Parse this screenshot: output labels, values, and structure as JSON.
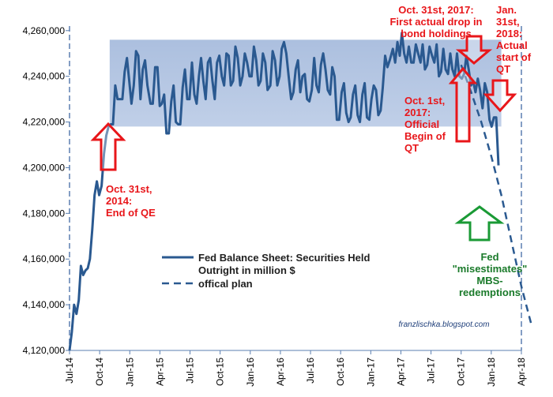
{
  "chart_data": {
    "type": "line",
    "title": "",
    "xlabel": "",
    "ylabel": "",
    "ylim": [
      4120000,
      4262000
    ],
    "y_ticks": [
      4120000,
      4140000,
      4160000,
      4180000,
      4200000,
      4220000,
      4240000,
      4260000
    ],
    "y_tick_labels": [
      "4,120,000",
      "4,140,000",
      "4,160,000",
      "4,180,000",
      "4,200,000",
      "4,220,000",
      "4,240,000",
      "4,260,000"
    ],
    "x_tick_labels": [
      "Jul-14",
      "Oct-14",
      "Jan-15",
      "Apr-15",
      "Jul-15",
      "Oct-15",
      "Jan-16",
      "Apr-16",
      "Jul-16",
      "Oct-16",
      "Jan-17",
      "Apr-17",
      "Jul-17",
      "Oct-17",
      "Jan-18",
      "Apr-18"
    ],
    "x_range": [
      "2014-07",
      "2018-04"
    ],
    "grid": false,
    "legend_position": "center-left",
    "highlight_band": {
      "x_from": "2014-11",
      "x_to": "2018-02",
      "y_from": 4218000,
      "y_to": 4256000,
      "color": "#9db4d9"
    },
    "series": [
      {
        "name": "Fed Balance Sheet: Securities Held Outright in million $",
        "style": "solid",
        "color": "#2a5990",
        "points": [
          [
            "2014-07-01",
            4120000
          ],
          [
            "2014-07-08",
            4128000
          ],
          [
            "2014-07-15",
            4140000
          ],
          [
            "2014-07-22",
            4136000
          ],
          [
            "2014-07-29",
            4142000
          ],
          [
            "2014-08-05",
            4157000
          ],
          [
            "2014-08-12",
            4153000
          ],
          [
            "2014-08-19",
            4155000
          ],
          [
            "2014-08-26",
            4156000
          ],
          [
            "2014-09-02",
            4160000
          ],
          [
            "2014-09-09",
            4173000
          ],
          [
            "2014-09-16",
            4188000
          ],
          [
            "2014-09-23",
            4194000
          ],
          [
            "2014-09-30",
            4188000
          ],
          [
            "2014-10-07",
            4192000
          ],
          [
            "2014-10-14",
            4206000
          ],
          [
            "2014-10-21",
            4214000
          ],
          [
            "2014-10-28",
            4218000
          ],
          [
            "2014-11-04",
            4219000
          ],
          [
            "2014-11-11",
            4219000
          ],
          [
            "2014-11-18",
            4236000
          ],
          [
            "2014-11-25",
            4230000
          ],
          [
            "2014-12-02",
            4230000
          ],
          [
            "2014-12-09",
            4230000
          ],
          [
            "2014-12-16",
            4242000
          ],
          [
            "2014-12-23",
            4248000
          ],
          [
            "2014-12-30",
            4238000
          ],
          [
            "2015-01-06",
            4228000
          ],
          [
            "2015-01-13",
            4236000
          ],
          [
            "2015-01-20",
            4251000
          ],
          [
            "2015-01-27",
            4249000
          ],
          [
            "2015-02-03",
            4230000
          ],
          [
            "2015-02-10",
            4243000
          ],
          [
            "2015-02-17",
            4247000
          ],
          [
            "2015-02-24",
            4236000
          ],
          [
            "2015-03-03",
            4228000
          ],
          [
            "2015-03-10",
            4228000
          ],
          [
            "2015-03-17",
            4244000
          ],
          [
            "2015-03-24",
            4244000
          ],
          [
            "2015-03-31",
            4227000
          ],
          [
            "2015-04-07",
            4228000
          ],
          [
            "2015-04-14",
            4232000
          ],
          [
            "2015-04-21",
            4215000
          ],
          [
            "2015-04-28",
            4215000
          ],
          [
            "2015-05-05",
            4229000
          ],
          [
            "2015-05-12",
            4236000
          ],
          [
            "2015-05-19",
            4220000
          ],
          [
            "2015-05-26",
            4219000
          ],
          [
            "2015-06-02",
            4219000
          ],
          [
            "2015-06-09",
            4235000
          ],
          [
            "2015-06-16",
            4243000
          ],
          [
            "2015-06-23",
            4230000
          ],
          [
            "2015-06-30",
            4230000
          ],
          [
            "2015-07-07",
            4246000
          ],
          [
            "2015-07-14",
            4232000
          ],
          [
            "2015-07-21",
            4228000
          ],
          [
            "2015-07-28",
            4240000
          ],
          [
            "2015-08-04",
            4248000
          ],
          [
            "2015-08-11",
            4238000
          ],
          [
            "2015-08-18",
            4230000
          ],
          [
            "2015-08-25",
            4246000
          ],
          [
            "2015-09-01",
            4248000
          ],
          [
            "2015-09-08",
            4238000
          ],
          [
            "2015-09-15",
            4230000
          ],
          [
            "2015-09-22",
            4246000
          ],
          [
            "2015-09-29",
            4249000
          ],
          [
            "2015-10-06",
            4240000
          ],
          [
            "2015-10-13",
            4236000
          ],
          [
            "2015-10-20",
            4250000
          ],
          [
            "2015-10-27",
            4249000
          ],
          [
            "2015-11-03",
            4236000
          ],
          [
            "2015-11-10",
            4238000
          ],
          [
            "2015-11-17",
            4253000
          ],
          [
            "2015-11-24",
            4248000
          ],
          [
            "2015-12-01",
            4236000
          ],
          [
            "2015-12-08",
            4240000
          ],
          [
            "2015-12-15",
            4250000
          ],
          [
            "2015-12-22",
            4246000
          ],
          [
            "2015-12-29",
            4240000
          ],
          [
            "2016-01-05",
            4240000
          ],
          [
            "2016-01-12",
            4253000
          ],
          [
            "2016-01-19",
            4247000
          ],
          [
            "2016-01-26",
            4236000
          ],
          [
            "2016-02-02",
            4238000
          ],
          [
            "2016-02-09",
            4250000
          ],
          [
            "2016-02-16",
            4246000
          ],
          [
            "2016-02-23",
            4234000
          ],
          [
            "2016-03-01",
            4236000
          ],
          [
            "2016-03-08",
            4251000
          ],
          [
            "2016-03-15",
            4247000
          ],
          [
            "2016-03-22",
            4236000
          ],
          [
            "2016-03-29",
            4240000
          ],
          [
            "2016-04-05",
            4252000
          ],
          [
            "2016-04-12",
            4255000
          ],
          [
            "2016-04-19",
            4250000
          ],
          [
            "2016-04-26",
            4240000
          ],
          [
            "2016-05-03",
            4230000
          ],
          [
            "2016-05-10",
            4233000
          ],
          [
            "2016-05-17",
            4243000
          ],
          [
            "2016-05-24",
            4247000
          ],
          [
            "2016-05-31",
            4233000
          ],
          [
            "2016-06-07",
            4240000
          ],
          [
            "2016-06-14",
            4241000
          ],
          [
            "2016-06-21",
            4230000
          ],
          [
            "2016-06-28",
            4229000
          ],
          [
            "2016-07-05",
            4234000
          ],
          [
            "2016-07-12",
            4248000
          ],
          [
            "2016-07-19",
            4236000
          ],
          [
            "2016-07-26",
            4233000
          ],
          [
            "2016-08-02",
            4245000
          ],
          [
            "2016-08-09",
            4250000
          ],
          [
            "2016-08-16",
            4243000
          ],
          [
            "2016-08-23",
            4234000
          ],
          [
            "2016-08-30",
            4232000
          ],
          [
            "2016-09-06",
            4244000
          ],
          [
            "2016-09-13",
            4240000
          ],
          [
            "2016-09-20",
            4221000
          ],
          [
            "2016-09-27",
            4221000
          ],
          [
            "2016-10-04",
            4233000
          ],
          [
            "2016-10-11",
            4237000
          ],
          [
            "2016-10-18",
            4224000
          ],
          [
            "2016-10-25",
            4220000
          ],
          [
            "2016-11-01",
            4222000
          ],
          [
            "2016-11-08",
            4232000
          ],
          [
            "2016-11-15",
            4236000
          ],
          [
            "2016-11-22",
            4223000
          ],
          [
            "2016-11-29",
            4220000
          ],
          [
            "2016-12-06",
            4232000
          ],
          [
            "2016-12-13",
            4237000
          ],
          [
            "2016-12-20",
            4222000
          ],
          [
            "2016-12-27",
            4221000
          ],
          [
            "2017-01-03",
            4230000
          ],
          [
            "2017-01-10",
            4236000
          ],
          [
            "2017-01-17",
            4234000
          ],
          [
            "2017-01-24",
            4223000
          ],
          [
            "2017-01-31",
            4225000
          ],
          [
            "2017-02-07",
            4235000
          ],
          [
            "2017-02-14",
            4249000
          ],
          [
            "2017-02-21",
            4244000
          ],
          [
            "2017-02-28",
            4247000
          ],
          [
            "2017-03-07",
            4252000
          ],
          [
            "2017-03-14",
            4246000
          ],
          [
            "2017-03-21",
            4255000
          ],
          [
            "2017-03-28",
            4249000
          ],
          [
            "2017-04-04",
            4259000
          ],
          [
            "2017-04-11",
            4250000
          ],
          [
            "2017-04-18",
            4246000
          ],
          [
            "2017-04-25",
            4253000
          ],
          [
            "2017-05-02",
            4246000
          ],
          [
            "2017-05-09",
            4246000
          ],
          [
            "2017-05-16",
            4254000
          ],
          [
            "2017-05-23",
            4250000
          ],
          [
            "2017-05-30",
            4246000
          ],
          [
            "2017-06-06",
            4254000
          ],
          [
            "2017-06-13",
            4243000
          ],
          [
            "2017-06-20",
            4245000
          ],
          [
            "2017-06-27",
            4253000
          ],
          [
            "2017-07-04",
            4249000
          ],
          [
            "2017-07-11",
            4246000
          ],
          [
            "2017-07-18",
            4254000
          ],
          [
            "2017-07-25",
            4240000
          ],
          [
            "2017-08-01",
            4242000
          ],
          [
            "2017-08-08",
            4252000
          ],
          [
            "2017-08-15",
            4243000
          ],
          [
            "2017-08-22",
            4241000
          ],
          [
            "2017-08-29",
            4250000
          ],
          [
            "2017-09-05",
            4243000
          ],
          [
            "2017-09-12",
            4240000
          ],
          [
            "2017-09-19",
            4250000
          ],
          [
            "2017-09-26",
            4240000
          ],
          [
            "2017-10-03",
            4239000
          ],
          [
            "2017-10-10",
            4241000
          ],
          [
            "2017-10-17",
            4249000
          ],
          [
            "2017-10-24",
            4243000
          ],
          [
            "2017-10-31",
            4236000
          ],
          [
            "2017-11-07",
            4238000
          ],
          [
            "2017-11-14",
            4233000
          ],
          [
            "2017-11-21",
            4239000
          ],
          [
            "2017-11-28",
            4234000
          ],
          [
            "2017-12-05",
            4226000
          ],
          [
            "2017-12-12",
            4237000
          ],
          [
            "2017-12-19",
            4233000
          ],
          [
            "2017-12-26",
            4221000
          ],
          [
            "2018-01-02",
            4218000
          ],
          [
            "2018-01-09",
            4222000
          ],
          [
            "2018-01-16",
            4222000
          ],
          [
            "2018-01-23",
            4201000
          ]
        ]
      },
      {
        "name": "offical plan",
        "style": "dashed",
        "color": "#2a5990",
        "points": [
          [
            "2017-10-01",
            4245000
          ],
          [
            "2017-11-01",
            4233000
          ],
          [
            "2017-12-01",
            4220000
          ],
          [
            "2018-01-01",
            4205000
          ],
          [
            "2018-02-01",
            4188000
          ],
          [
            "2018-03-01",
            4168000
          ],
          [
            "2018-04-01",
            4148000
          ],
          [
            "2018-04-30",
            4132000
          ]
        ]
      }
    ],
    "annotations": [
      {
        "key": "end_qe",
        "lines": [
          "Oct. 31st,",
          "2014:",
          "End of QE"
        ],
        "color": "#e8161a"
      },
      {
        "key": "first_drop",
        "lines": [
          "Oct. 31st, 2017:",
          "First actual drop in",
          "bond  holdings"
        ],
        "color": "#e8161a"
      },
      {
        "key": "official_begin",
        "lines": [
          "Oct. 1st,",
          "2017:",
          "Official",
          "Begin of",
          "QT"
        ],
        "color": "#e8161a"
      },
      {
        "key": "actual_start",
        "lines": [
          "Jan.",
          "31st,",
          "2018:",
          "Actual",
          "start of",
          "QT"
        ],
        "color": "#e8161a"
      },
      {
        "key": "misestimates",
        "lines": [
          "Fed",
          "\"misestimates\"",
          "MBS-",
          "redemptions"
        ],
        "color": "#1a7a2a"
      }
    ],
    "credit": "franzlischka.blogspot.com"
  }
}
